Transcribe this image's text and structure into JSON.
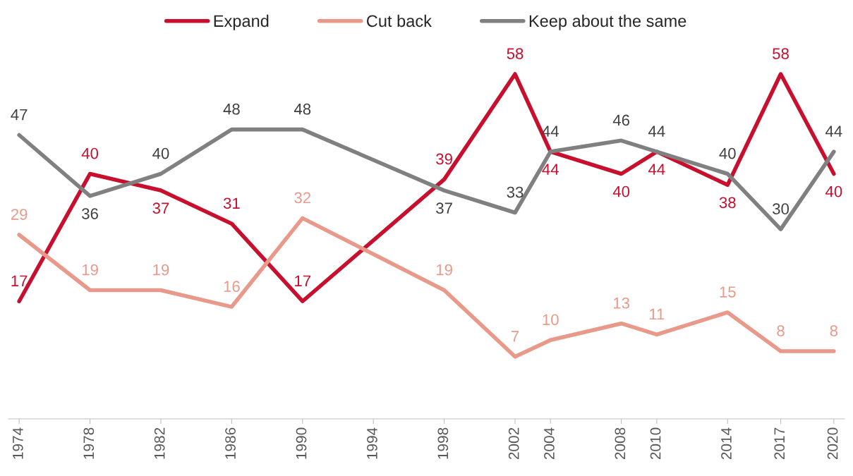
{
  "chart_data": {
    "type": "line",
    "x": [
      1974,
      1978,
      1982,
      1986,
      1990,
      1998,
      2002,
      2004,
      2008,
      2010,
      2014,
      2017,
      2020
    ],
    "xlim": [
      1973.4,
      2020.6
    ],
    "xticks": [
      1974,
      1978,
      1982,
      1986,
      1990,
      1994,
      1998,
      2002,
      2004,
      2008,
      2010,
      2014,
      2017,
      2020
    ],
    "tick_labels": "x",
    "series": [
      {
        "name": "Expand",
        "color": "#c8102e",
        "values": [
          17,
          40,
          37,
          31,
          17,
          39,
          58,
          44,
          40,
          44,
          38,
          58,
          40
        ]
      },
      {
        "name": "Cut back",
        "color": "#e8998a",
        "values": [
          29,
          19,
          19,
          16,
          32,
          19,
          7,
          10,
          13,
          11,
          15,
          8,
          8
        ]
      },
      {
        "name": "Keep about the same",
        "color": "#808080",
        "values": [
          47,
          36,
          40,
          48,
          48,
          37,
          33,
          44,
          46,
          44,
          40,
          30,
          44
        ]
      }
    ],
    "data_labels": true,
    "legend": "top",
    "grid": false,
    "marker": "none",
    "line_style": "solid"
  }
}
